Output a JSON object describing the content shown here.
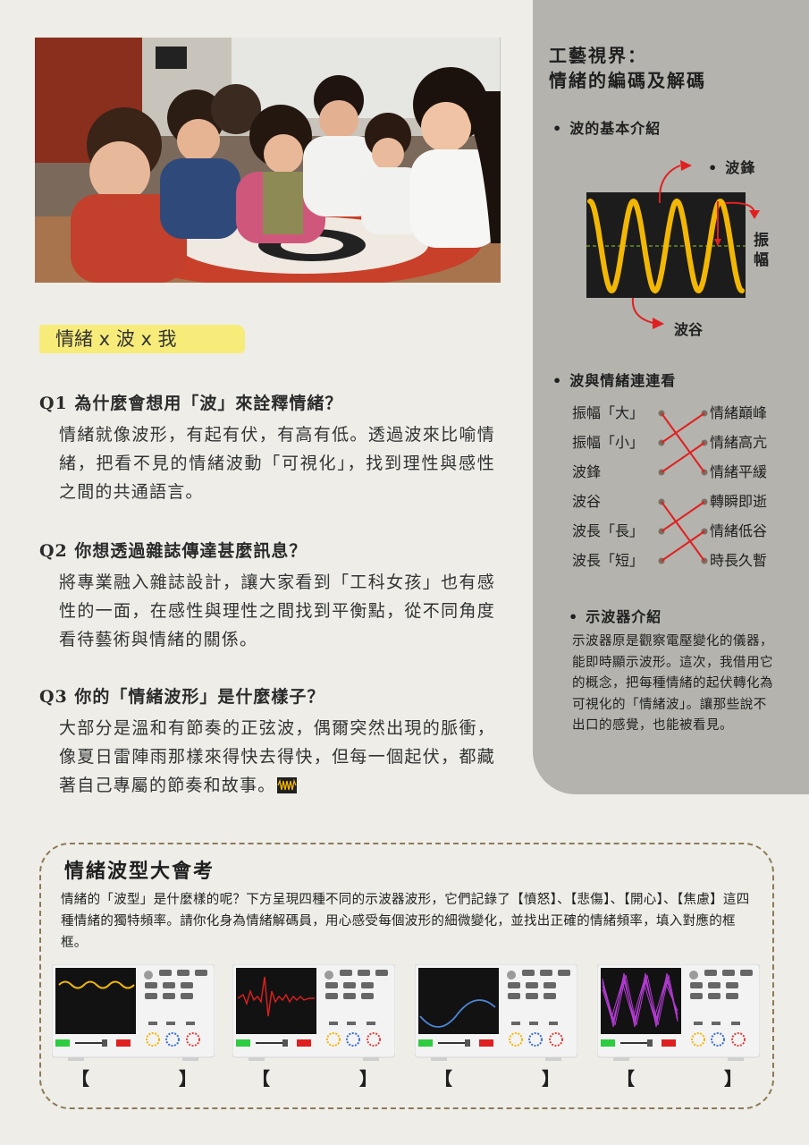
{
  "section_title": "情緒 x 波 x 我",
  "qa": [
    {
      "question": "Q1 為什麼會想用「波」來詮釋情緒？",
      "answer": "情緒就像波形，有起有伏，有高有低。透過波來比喻情緒，把看不見的情緒波動「可視化」，找到理性與感性之間的共通語言。"
    },
    {
      "question": "Q2 你想透過雜誌傳達甚麼訊息？",
      "answer": "將專業融入雜誌設計，讓大家看到「工科女孩」也有感性的一面，在感性與理性之間找到平衡點，從不同角度看待藝術與情緒的關係。"
    },
    {
      "question": "Q3 你的「情緒波形」是什麼樣子？",
      "answer": "大部分是溫和有節奏的正弦波，偶爾突然出現的脈衝，像夏日雷陣雨那樣來得快去得快，但每一個起伏，都藏著自己專屬的節奏和故事。"
    }
  ],
  "sidebar": {
    "title_line1": "工藝視界：",
    "title_line2": "情緒的編碼及解碼",
    "bullet_wave_intro": "波的基本介紹",
    "label_crest": "波鋒",
    "label_amp_1": "振",
    "label_amp_2": "幅",
    "label_trough": "波谷",
    "bullet_match": "波與情緒連連看",
    "match_left": [
      "振幅「大」",
      "振幅「小」",
      "波鋒",
      "波谷",
      "波長「長」",
      "波長「短」"
    ],
    "match_right": [
      "情緒巔峰",
      "情緒高亢",
      "情緒平緩",
      "轉瞬即逝",
      "情緒低谷",
      "時長久暫"
    ],
    "bullet_osc": "示波器介紹",
    "osc_intro": "示波器原是觀察電壓變化的儀器，能即時顯示波形。這次，我借用它的概念，把每種情緒的起伏轉化為可視化的「情緒波」。讓那些說不出口的感覺，也能被看見。"
  },
  "quiz": {
    "title": "情緒波型大會考",
    "description": "情緒的「波型」是什麼樣的呢？下方呈現四種不同的示波器波形，它們記錄了【憤怒】、【悲傷】、【開心】、【焦慮】這四種情緒的獨特頻率。請你化身為情緒解碼員，用心感受每個波形的細微變化，並找出正確的情緒頻率，填入對應的框框。",
    "bracket_open": "【",
    "bracket_close": "】"
  },
  "colors": {
    "highlight": "#f7ec7a",
    "sidebar": "#b4b3ae",
    "wave": "#f2b705",
    "arrow": "#e02020"
  }
}
